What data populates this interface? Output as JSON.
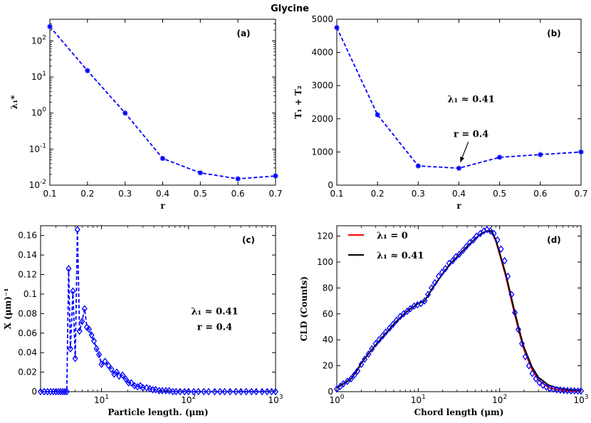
{
  "title": "Glycine",
  "colors": {
    "series": "#0000ff",
    "red": "#ff0000",
    "black": "#000000"
  },
  "chart_data": [
    {
      "id": "a",
      "type": "line",
      "tag": "(a)",
      "xlabel": "r",
      "ylabel": "λ₁*",
      "xscale": "linear",
      "yscale": "log",
      "xlim": [
        0.1,
        0.7
      ],
      "ylim": [
        0.01,
        400
      ],
      "xticks": [
        0.1,
        0.2,
        0.3,
        0.4,
        0.5,
        0.6,
        0.7
      ],
      "xticklabels": [
        "0.1",
        "0.2",
        "0.3",
        "0.4",
        "0.5",
        "0.6",
        "0.7"
      ],
      "yticks": [
        0.01,
        0.1,
        1,
        10,
        100
      ],
      "yticklabels": [
        [
          "10",
          "-2"
        ],
        [
          "10",
          "-1"
        ],
        [
          "10",
          "0"
        ],
        [
          "10",
          "1"
        ],
        [
          "10",
          "2"
        ]
      ],
      "series": [
        {
          "name": "λ₁*",
          "marker": "asterisk",
          "style": "dashed",
          "x": [
            0.1,
            0.2,
            0.3,
            0.4,
            0.5,
            0.6,
            0.7
          ],
          "y": [
            250,
            15,
            1.0,
            0.055,
            0.022,
            0.015,
            0.018
          ]
        }
      ],
      "annotations": []
    },
    {
      "id": "b",
      "type": "line",
      "tag": "(b)",
      "xlabel": "r",
      "ylabel": "T₁ + T₂",
      "xscale": "linear",
      "yscale": "linear",
      "xlim": [
        0.1,
        0.7
      ],
      "ylim": [
        0,
        5000
      ],
      "xticks": [
        0.1,
        0.2,
        0.3,
        0.4,
        0.5,
        0.6,
        0.7
      ],
      "xticklabels": [
        "0.1",
        "0.2",
        "0.3",
        "0.4",
        "0.5",
        "0.6",
        "0.7"
      ],
      "yticks": [
        0,
        1000,
        2000,
        3000,
        4000,
        5000
      ],
      "yticklabels": [
        "0",
        "1000",
        "2000",
        "3000",
        "4000",
        "5000"
      ],
      "series": [
        {
          "name": "T1+T2",
          "marker": "asterisk",
          "style": "dashed",
          "x": [
            0.1,
            0.2,
            0.3,
            0.4,
            0.5,
            0.6,
            0.7
          ],
          "y": [
            4750,
            2120,
            580,
            510,
            840,
            920,
            1000
          ]
        }
      ],
      "annotations": [
        {
          "text": "λ₁ ≈ 0.41",
          "x": 0.43,
          "y": 2500
        },
        {
          "text": "r = 0.4",
          "x": 0.43,
          "y": 1450,
          "arrow_to": [
            0.4,
            540
          ]
        }
      ]
    },
    {
      "id": "c",
      "type": "line",
      "tag": "(c)",
      "xlabel": "Particle length. (μm)",
      "ylabel": "X (μm)⁻¹",
      "xscale": "log",
      "yscale": "linear",
      "xlim": [
        2,
        1000
      ],
      "ylim": [
        0,
        0.17
      ],
      "xticks": [
        10,
        100,
        1000
      ],
      "xticklabels": [
        [
          "10",
          "1"
        ],
        [
          "10",
          "2"
        ],
        [
          "10",
          "3"
        ]
      ],
      "yticks": [
        0,
        0.02,
        0.04,
        0.06,
        0.08,
        0.1,
        0.12,
        0.14,
        0.16
      ],
      "yticklabels": [
        "0",
        "0.02",
        "0.04",
        "0.06",
        "0.08",
        "0.1",
        "0.12",
        "0.14",
        "0.16"
      ],
      "series": [
        {
          "name": "X",
          "marker": "diamond",
          "style": "dashed",
          "x": [
            2.0,
            2.2,
            2.4,
            2.6,
            2.8,
            3.0,
            3.2,
            3.4,
            3.6,
            3.8,
            4.0,
            4.2,
            4.4,
            4.7,
            5.0,
            5.3,
            5.6,
            6.0,
            6.4,
            6.8,
            7.2,
            7.7,
            8.2,
            8.8,
            9.4,
            10,
            11,
            12,
            13,
            14,
            15,
            16,
            17.5,
            19,
            20.5,
            22,
            24,
            26,
            28,
            30,
            33,
            36,
            39,
            42,
            46,
            50,
            55,
            60,
            66,
            72,
            80,
            90,
            100,
            115,
            130,
            150,
            170,
            200,
            230,
            260,
            300,
            350,
            400,
            460,
            530,
            600,
            700,
            800,
            900,
            1000
          ],
          "y": [
            0,
            0,
            0,
            0,
            0,
            0,
            0,
            0,
            0,
            0,
            0,
            0.126,
            0.044,
            0.103,
            0.034,
            0.166,
            0.062,
            0.072,
            0.085,
            0.066,
            0.064,
            0.058,
            0.052,
            0.044,
            0.038,
            0.028,
            0.031,
            0.027,
            0.023,
            0.018,
            0.02,
            0.016,
            0.017,
            0.013,
            0.009,
            0.009,
            0.006,
            0.005,
            0.006,
            0.004,
            0.004,
            0.003,
            0.002,
            0.002,
            0.001,
            0.001,
            0.001,
            0.001,
            0,
            0,
            0,
            0,
            0,
            0,
            0,
            0,
            0,
            0,
            0,
            0,
            0,
            0,
            0,
            0,
            0,
            0,
            0,
            0,
            0,
            0
          ]
        }
      ],
      "annotations": [
        {
          "text": "λ₁ ≈ 0.41",
          "x": 200,
          "y": 0.079
        },
        {
          "text": "r = 0.4",
          "x": 200,
          "y": 0.063
        }
      ]
    },
    {
      "id": "d",
      "type": "line",
      "tag": "(d)",
      "xlabel": "Chord length (μm)",
      "ylabel": "CLD (Counts)",
      "xscale": "log",
      "yscale": "linear",
      "xlim": [
        1,
        1000
      ],
      "ylim": [
        0,
        128
      ],
      "xticks": [
        1,
        10,
        100,
        1000
      ],
      "xticklabels": [
        [
          "10",
          "0"
        ],
        [
          "10",
          "1"
        ],
        [
          "10",
          "2"
        ],
        [
          "10",
          "3"
        ]
      ],
      "yticks": [
        0,
        20,
        40,
        60,
        80,
        100,
        120
      ],
      "yticklabels": [
        "0",
        "20",
        "40",
        "60",
        "80",
        "100",
        "120"
      ],
      "series": [
        {
          "name": "λ₁ = 0",
          "color": "#ff0000",
          "style": "solid",
          "x": [
            1,
            1.2,
            1.5,
            1.8,
            2,
            2.5,
            3,
            4,
            5,
            6,
            7,
            8,
            9,
            10,
            11,
            12,
            15,
            20,
            25,
            30,
            40,
            50,
            60,
            70,
            80,
            90,
            100,
            120,
            150,
            180,
            200,
            250,
            300,
            400,
            500,
            700,
            1000
          ],
          "y": [
            3,
            6,
            10,
            17,
            22,
            30,
            36,
            45,
            52,
            57,
            61,
            64,
            66,
            68,
            69,
            70,
            80,
            91,
            99,
            104,
            112,
            118,
            122,
            124,
            123,
            116,
            106,
            88,
            62,
            42,
            32,
            17,
            9,
            3,
            1.5,
            0.5,
            0.2
          ]
        },
        {
          "name": "λ₁ ≈ 0.41",
          "color": "#000000",
          "style": "solid",
          "x": [
            1,
            1.2,
            1.5,
            1.8,
            2,
            2.5,
            3,
            4,
            5,
            6,
            7,
            8,
            9,
            10,
            11,
            12,
            15,
            20,
            25,
            30,
            40,
            50,
            60,
            70,
            80,
            90,
            100,
            120,
            150,
            180,
            200,
            250,
            300,
            400,
            500,
            700,
            1000
          ],
          "y": [
            3,
            6,
            10,
            17,
            22,
            30,
            36,
            45,
            52,
            57,
            61,
            64,
            66,
            68,
            69,
            70,
            80,
            91,
            99,
            104,
            112,
            118,
            122,
            124,
            124,
            117,
            107,
            90,
            64,
            44,
            34,
            19,
            11,
            5,
            3,
            1.5,
            1
          ]
        },
        {
          "name": "data",
          "color": "#0000ff",
          "style": "markers",
          "marker": "diamond",
          "x": [
            1,
            1.1,
            1.2,
            1.35,
            1.5,
            1.65,
            1.8,
            2,
            2.2,
            2.45,
            2.7,
            3,
            3.3,
            3.65,
            4,
            4.45,
            4.9,
            5.4,
            6,
            6.6,
            7.3,
            8,
            8.9,
            9.8,
            10.8,
            12,
            13.2,
            14.6,
            16,
            17.8,
            19.6,
            21.6,
            24,
            26.5,
            29,
            32,
            35.5,
            39,
            43,
            47.5,
            52,
            58,
            64,
            70,
            77,
            85,
            94,
            104,
            115,
            126,
            140,
            154,
            170,
            188,
            207,
            229,
            252,
            279,
            308,
            340,
            375,
            414,
            457,
            505,
            557,
            615,
            680,
            750,
            830,
            916,
            1000
          ],
          "y": [
            2,
            4,
            6,
            8,
            10,
            13,
            16,
            21,
            25,
            29,
            33,
            37,
            40,
            43,
            46,
            49,
            52,
            55,
            58,
            60,
            62,
            64,
            66,
            67,
            68,
            70,
            75,
            80,
            84,
            89,
            92,
            95,
            99,
            101,
            104,
            106,
            109,
            112,
            115,
            117,
            120,
            122,
            124,
            125,
            124,
            122,
            117,
            110,
            101,
            89,
            75,
            61,
            48,
            37,
            27,
            20,
            14,
            10,
            7,
            5,
            3.5,
            2.5,
            2,
            1.5,
            1.2,
            1,
            0.8,
            0.7,
            0.6,
            0.5,
            0.5
          ]
        }
      ],
      "legend": [
        {
          "label": "λ₁ = 0",
          "color": "#ff0000"
        },
        {
          "label": "λ₁ ≈ 0.41",
          "color": "#000000"
        }
      ],
      "annotations": []
    }
  ]
}
